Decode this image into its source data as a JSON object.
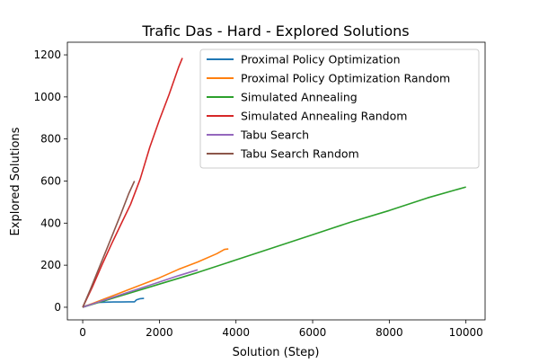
{
  "chart_data": {
    "type": "line",
    "title": "Trafic Das - Hard - Explored Solutions",
    "xlabel": "Solution (Step)",
    "ylabel": "Explored Solutions",
    "xlim": [
      -400,
      10500
    ],
    "ylim": [
      -60,
      1260
    ],
    "xticks": [
      0,
      2000,
      4000,
      6000,
      8000,
      10000
    ],
    "yticks": [
      0,
      200,
      400,
      600,
      800,
      1000,
      1200
    ],
    "grid": false,
    "legend_position": "top-right",
    "series": [
      {
        "name": "Proximal Policy Optimization",
        "color": "#1f77b4",
        "x": [
          0,
          100,
          200,
          300,
          400,
          600,
          800,
          1000,
          1200,
          1350,
          1400,
          1500,
          1600
        ],
        "y": [
          2,
          8,
          14,
          19,
          23,
          24,
          25,
          25,
          26,
          26,
          35,
          41,
          42
        ]
      },
      {
        "name": "Proximal Policy Optimization Random",
        "color": "#ff7f0e",
        "x": [
          0,
          500,
          1000,
          1500,
          2000,
          2500,
          3000,
          3500,
          3700,
          3800
        ],
        "y": [
          0,
          35,
          70,
          105,
          140,
          180,
          215,
          255,
          275,
          277
        ]
      },
      {
        "name": "Simulated Annealing",
        "color": "#2ca02c",
        "x": [
          0,
          1000,
          2000,
          3000,
          4000,
          5000,
          6000,
          7000,
          8000,
          9000,
          10000
        ],
        "y": [
          0,
          55,
          110,
          165,
          225,
          285,
          345,
          405,
          460,
          520,
          572
        ]
      },
      {
        "name": "Simulated Annealing Random",
        "color": "#d62728",
        "x": [
          0,
          250,
          500,
          750,
          1000,
          1250,
          1500,
          1750,
          2000,
          2250,
          2500,
          2600
        ],
        "y": [
          0,
          95,
          200,
          300,
          395,
          490,
          610,
          760,
          890,
          1010,
          1140,
          1185
        ]
      },
      {
        "name": "Tabu Search",
        "color": "#9467bd",
        "x": [
          0,
          500,
          1000,
          1500,
          2000,
          2500,
          3000
        ],
        "y": [
          0,
          30,
          60,
          90,
          120,
          150,
          178
        ]
      },
      {
        "name": "Tabu Search Random",
        "color": "#8c564b",
        "x": [
          0,
          200,
          400,
          600,
          800,
          1000,
          1200,
          1350
        ],
        "y": [
          0,
          85,
          175,
          265,
          355,
          445,
          540,
          600
        ]
      }
    ]
  }
}
